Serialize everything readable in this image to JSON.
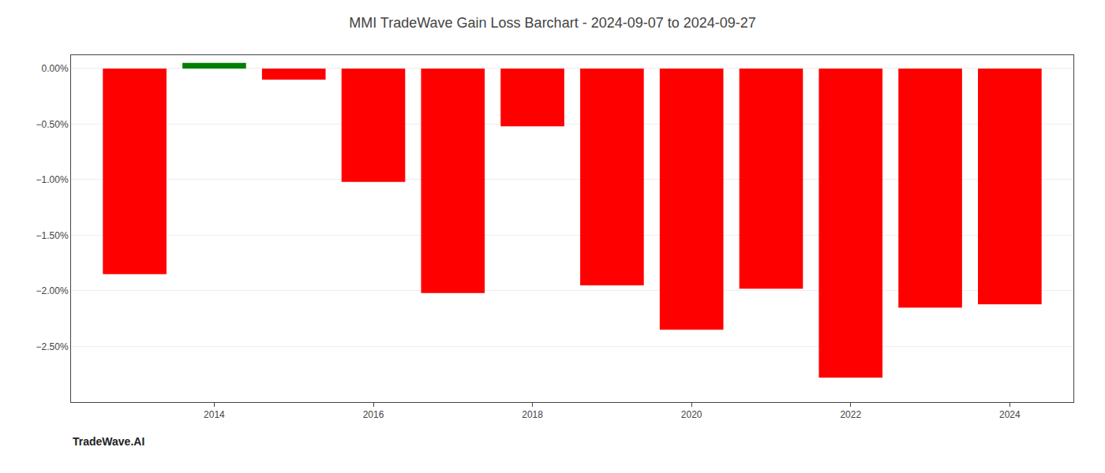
{
  "chart_data": {
    "type": "bar",
    "title": "MMI TradeWave Gain Loss Barchart - 2024-09-07 to 2024-09-27",
    "annotations": [
      "TradeWave.AI"
    ],
    "x": [
      2013,
      2014,
      2015,
      2016,
      2017,
      2018,
      2019,
      2020,
      2021,
      2022,
      2023,
      2024
    ],
    "values": [
      -1.85,
      0.05,
      -0.1,
      -1.02,
      -2.02,
      -0.52,
      -1.95,
      -2.35,
      -1.98,
      -2.78,
      -2.15,
      -2.12
    ],
    "colors": [
      "#ff0000",
      "#008000",
      "#ff0000",
      "#ff0000",
      "#ff0000",
      "#ff0000",
      "#ff0000",
      "#ff0000",
      "#ff0000",
      "#ff0000",
      "#ff0000",
      "#ff0000"
    ],
    "xlim": [
      2012.2,
      2024.8
    ],
    "xticks": [
      2014,
      2016,
      2018,
      2020,
      2022,
      2024
    ],
    "ylim": [
      -3.0,
      0.12
    ],
    "yticks": [
      {
        "value": 0.0,
        "label": "0.00%"
      },
      {
        "value": -0.5,
        "label": "−0.50%"
      },
      {
        "value": -1.0,
        "label": "−1.00%"
      },
      {
        "value": -1.5,
        "label": "−1.50%"
      },
      {
        "value": -2.0,
        "label": "−2.00%"
      },
      {
        "value": -2.5,
        "label": "−2.50%"
      }
    ],
    "grid": true
  }
}
